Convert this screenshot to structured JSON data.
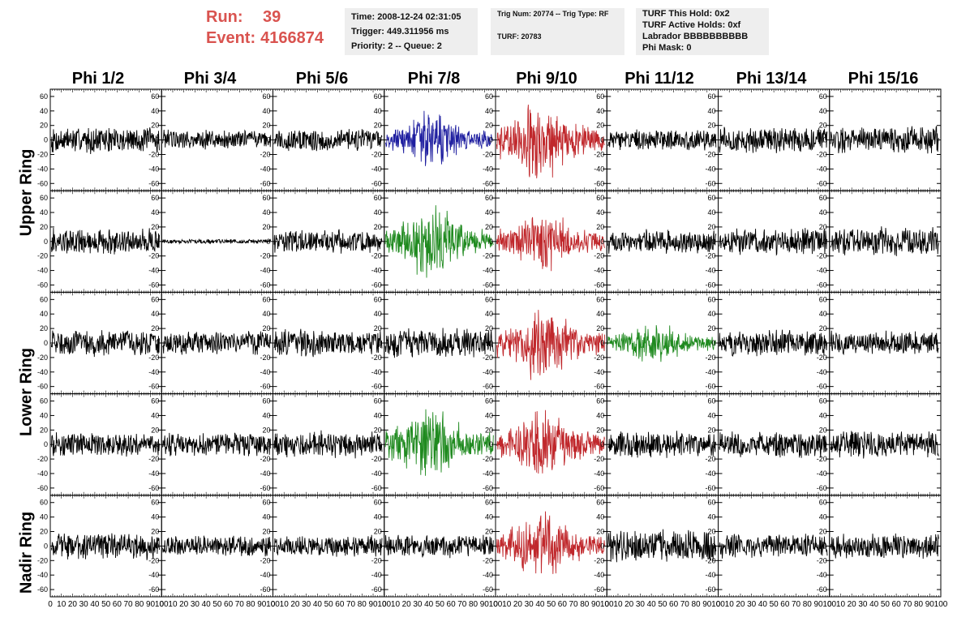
{
  "run": {
    "run_label": "Run:",
    "run_value": "39",
    "event_label": "Event:",
    "event_value": "4166874",
    "color": "#d9534f"
  },
  "info_time": {
    "time": "Time: 2008-12-24 02:31:05",
    "trigger": "Trigger: 449.311956 ms",
    "priority": "Priority: 2 -- Queue: 2"
  },
  "info_trig": {
    "trig": "Trig Num: 20774 -- Trig Type: RF",
    "turf": "TURF: 20783"
  },
  "info_turf": {
    "hold": "TURF This Hold: 0x2",
    "active": "TURF Active Holds: 0xf",
    "labrador": "Labrador BBBBBBBBBB",
    "phimask": "Phi Mask: 0"
  },
  "columns": [
    "Phi 1/2",
    "Phi 3/4",
    "Phi 5/6",
    "Phi 7/8",
    "Phi 9/10",
    "Phi 11/12",
    "Phi 13/14",
    "Phi 15/16"
  ],
  "ring_labels": [
    "Upper Ring",
    "Lower Ring",
    "Nadir Ring"
  ],
  "colors": {
    "black": "#000000",
    "blue": "#1f1fa0",
    "red": "#c0282c",
    "green": "#1f8a1f"
  },
  "chart_data": {
    "type": "line",
    "x_range": [
      0,
      100
    ],
    "y_range": [
      -70,
      70
    ],
    "x_ticks": [
      0,
      10,
      20,
      30,
      40,
      50,
      60,
      70,
      80,
      90,
      100
    ],
    "y_ticks": [
      -60,
      -40,
      -20,
      0,
      20,
      40,
      60
    ],
    "rows": 5,
    "cols": 8,
    "panels": [
      {
        "row": 0,
        "col": 0,
        "color": "black",
        "amp": 18,
        "mode": "flat"
      },
      {
        "row": 0,
        "col": 1,
        "color": "black",
        "amp": 14,
        "mode": "flat"
      },
      {
        "row": 0,
        "col": 2,
        "color": "black",
        "amp": 16,
        "mode": "flat"
      },
      {
        "row": 0,
        "col": 3,
        "color": "blue",
        "amp": 28,
        "mode": "burst"
      },
      {
        "row": 0,
        "col": 4,
        "color": "red",
        "amp": 42,
        "mode": "burst"
      },
      {
        "row": 0,
        "col": 5,
        "color": "black",
        "amp": 14,
        "mode": "flat"
      },
      {
        "row": 0,
        "col": 6,
        "color": "black",
        "amp": 18,
        "mode": "flat"
      },
      {
        "row": 0,
        "col": 7,
        "color": "black",
        "amp": 18,
        "mode": "flat"
      },
      {
        "row": 1,
        "col": 0,
        "color": "black",
        "amp": 18,
        "mode": "flat"
      },
      {
        "row": 1,
        "col": 1,
        "color": "black",
        "amp": 3,
        "mode": "flat"
      },
      {
        "row": 1,
        "col": 2,
        "color": "black",
        "amp": 16,
        "mode": "flat"
      },
      {
        "row": 1,
        "col": 3,
        "color": "green",
        "amp": 38,
        "mode": "burst"
      },
      {
        "row": 1,
        "col": 4,
        "color": "red",
        "amp": 30,
        "mode": "burst"
      },
      {
        "row": 1,
        "col": 5,
        "color": "black",
        "amp": 16,
        "mode": "flat"
      },
      {
        "row": 1,
        "col": 6,
        "color": "black",
        "amp": 18,
        "mode": "flat"
      },
      {
        "row": 1,
        "col": 7,
        "color": "black",
        "amp": 20,
        "mode": "flat"
      },
      {
        "row": 2,
        "col": 0,
        "color": "black",
        "amp": 18,
        "mode": "flat"
      },
      {
        "row": 2,
        "col": 1,
        "color": "black",
        "amp": 16,
        "mode": "flat"
      },
      {
        "row": 2,
        "col": 2,
        "color": "black",
        "amp": 18,
        "mode": "flat"
      },
      {
        "row": 2,
        "col": 3,
        "color": "black",
        "amp": 20,
        "mode": "flat"
      },
      {
        "row": 2,
        "col": 4,
        "color": "red",
        "amp": 36,
        "mode": "burst"
      },
      {
        "row": 2,
        "col": 5,
        "color": "green",
        "amp": 22,
        "mode": "burst"
      },
      {
        "row": 2,
        "col": 6,
        "color": "black",
        "amp": 18,
        "mode": "flat"
      },
      {
        "row": 2,
        "col": 7,
        "color": "black",
        "amp": 16,
        "mode": "flat"
      },
      {
        "row": 3,
        "col": 0,
        "color": "black",
        "amp": 16,
        "mode": "flat"
      },
      {
        "row": 3,
        "col": 1,
        "color": "black",
        "amp": 16,
        "mode": "flat"
      },
      {
        "row": 3,
        "col": 2,
        "color": "black",
        "amp": 18,
        "mode": "flat"
      },
      {
        "row": 3,
        "col": 3,
        "color": "green",
        "amp": 38,
        "mode": "burst"
      },
      {
        "row": 3,
        "col": 4,
        "color": "red",
        "amp": 36,
        "mode": "burst"
      },
      {
        "row": 3,
        "col": 5,
        "color": "black",
        "amp": 18,
        "mode": "flat"
      },
      {
        "row": 3,
        "col": 6,
        "color": "black",
        "amp": 18,
        "mode": "flat"
      },
      {
        "row": 3,
        "col": 7,
        "color": "black",
        "amp": 18,
        "mode": "flat"
      },
      {
        "row": 4,
        "col": 0,
        "color": "black",
        "amp": 18,
        "mode": "flat"
      },
      {
        "row": 4,
        "col": 1,
        "color": "black",
        "amp": 14,
        "mode": "flat"
      },
      {
        "row": 4,
        "col": 2,
        "color": "black",
        "amp": 14,
        "mode": "flat"
      },
      {
        "row": 4,
        "col": 3,
        "color": "black",
        "amp": 16,
        "mode": "flat"
      },
      {
        "row": 4,
        "col": 4,
        "color": "red",
        "amp": 34,
        "mode": "burst"
      },
      {
        "row": 4,
        "col": 5,
        "color": "black",
        "amp": 22,
        "mode": "flat"
      },
      {
        "row": 4,
        "col": 6,
        "color": "black",
        "amp": 16,
        "mode": "flat"
      },
      {
        "row": 4,
        "col": 7,
        "color": "black",
        "amp": 18,
        "mode": "flat"
      }
    ]
  }
}
